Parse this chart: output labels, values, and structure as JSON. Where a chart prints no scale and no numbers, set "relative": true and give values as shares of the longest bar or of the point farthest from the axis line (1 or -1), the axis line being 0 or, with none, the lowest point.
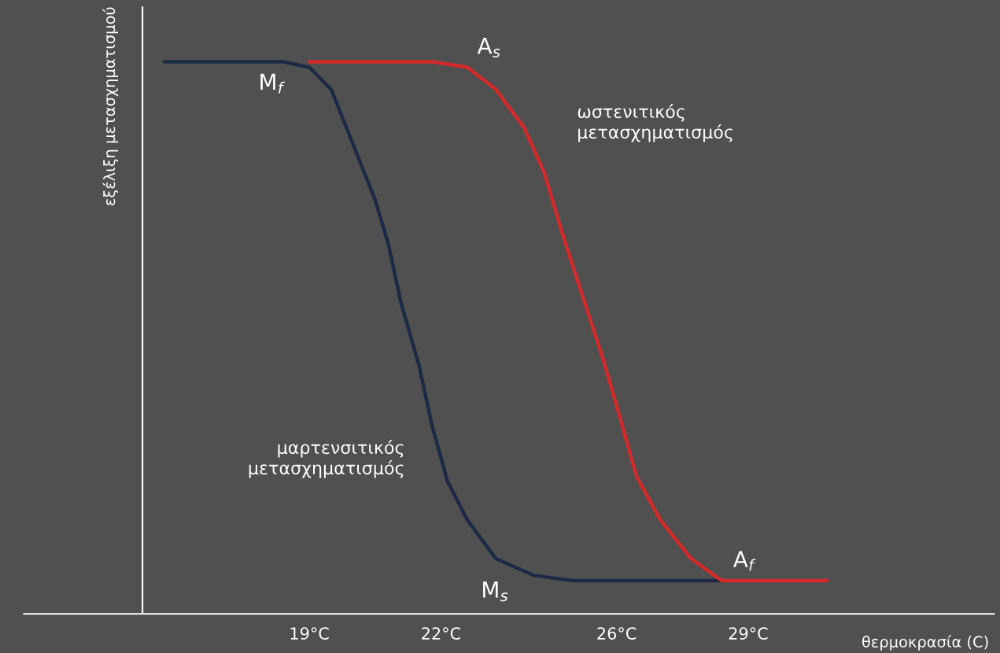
{
  "chart_data": {
    "type": "line",
    "relative": true,
    "xlabel": "θερμοκρασία (C)",
    "ylabel": "εξέλιξη μετασχηματισμού",
    "xlim": [
      12.5,
      34.6
    ],
    "xticks": [
      {
        "value": 19,
        "label": "19°C"
      },
      {
        "value": 22,
        "label": "22°C"
      },
      {
        "value": 26,
        "label": "26°C"
      },
      {
        "value": 29,
        "label": "29°C"
      }
    ],
    "series": [
      {
        "color": "#1c2a45",
        "x": [
          15.7,
          18.4,
          19.0,
          19.5,
          19.9,
          20.5,
          20.8,
          21.1,
          21.5,
          21.8,
          22.15,
          22.6,
          23.25,
          24.1,
          25.0,
          28.4
        ],
        "values": [
          1,
          1,
          0.99,
          0.95,
          0.87,
          0.75,
          0.67,
          0.56,
          0.45,
          0.34,
          0.24,
          0.17,
          0.1,
          0.07,
          0.06,
          0.06
        ]
      },
      {
        "color": "#d42a2a",
        "x": [
          19.0,
          21.8,
          22.6,
          23.25,
          23.9,
          24.35,
          24.8,
          25.25,
          25.7,
          26.1,
          26.45,
          27.0,
          27.7,
          28.4,
          29.1,
          30.8
        ],
        "values": [
          1,
          1,
          0.99,
          0.95,
          0.88,
          0.8,
          0.68,
          0.57,
          0.46,
          0.35,
          0.25,
          0.17,
          0.1,
          0.06,
          0.06,
          0.06
        ]
      }
    ],
    "annotations": [
      {
        "text": "M$_{f}$",
        "x": 19.0,
        "y": 0.99
      },
      {
        "text": "A$_{s}$",
        "x": 22.6,
        "y": 0.99
      },
      {
        "text": "A$_{f}$",
        "x": 28.4,
        "y": 0.06
      },
      {
        "text": "M$_{s}$",
        "x": 24.1,
        "y": 0.07
      },
      {
        "text": "ωστενιτικός\nμετασχηματισμός",
        "x": 24.35,
        "y": 0.8
      },
      {
        "text": "μαρτενσιτικός\nμετασχηματισμός",
        "x": 21.8,
        "y": 0.34
      }
    ],
    "ref_lines": [
      {
        "axis": "x",
        "value": 15.2,
        "color": "#ffffff"
      }
    ],
    "grid": false,
    "legend": false
  }
}
